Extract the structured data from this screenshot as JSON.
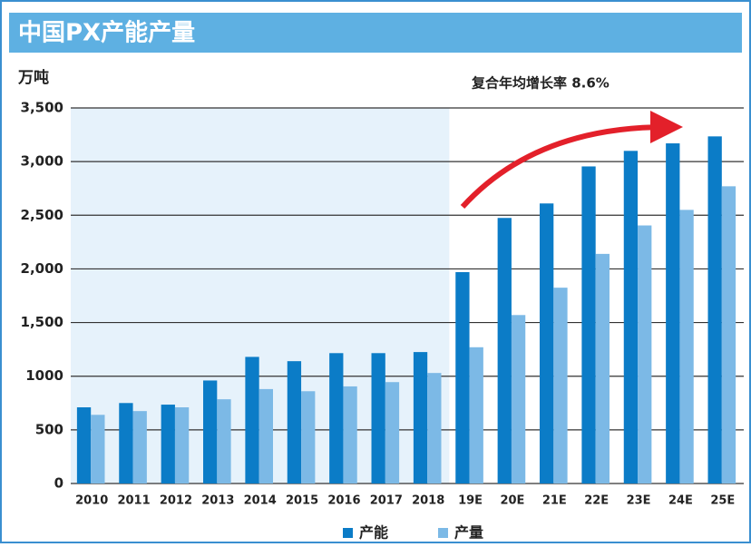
{
  "chart_data": {
    "type": "bar",
    "title": "中国PX产能产量",
    "y_label": "万吨",
    "annotation": "复合年均增长率 8.6%",
    "categories": [
      "2010",
      "2011",
      "2012",
      "2013",
      "2014",
      "2015",
      "2016",
      "2017",
      "2018",
      "19E",
      "20E",
      "21E",
      "22E",
      "23E",
      "24E",
      "25E"
    ],
    "series": [
      {
        "name": "产能",
        "color": "#0b7cc7",
        "values": [
          710,
          750,
          735,
          960,
          1180,
          1140,
          1215,
          1215,
          1225,
          1970,
          2475,
          2610,
          2955,
          3100,
          3170,
          3235
        ]
      },
      {
        "name": "产量",
        "color": "#7cb9e6",
        "values": [
          640,
          675,
          710,
          785,
          880,
          860,
          905,
          945,
          1030,
          1270,
          1570,
          1825,
          2140,
          2405,
          2550,
          2770
        ]
      }
    ],
    "ylim": [
      0,
      3500
    ],
    "yticks": [
      0,
      500,
      1000,
      {
        "value": 1500,
        "label": "1,500"
      },
      {
        "value": 2000,
        "label": "2,000"
      },
      {
        "value": 2500,
        "label": "2,500"
      },
      {
        "value": 3000,
        "label": "3,000"
      },
      {
        "value": 3500,
        "label": "3,500"
      }
    ],
    "grid": true,
    "legend": "bottom"
  }
}
